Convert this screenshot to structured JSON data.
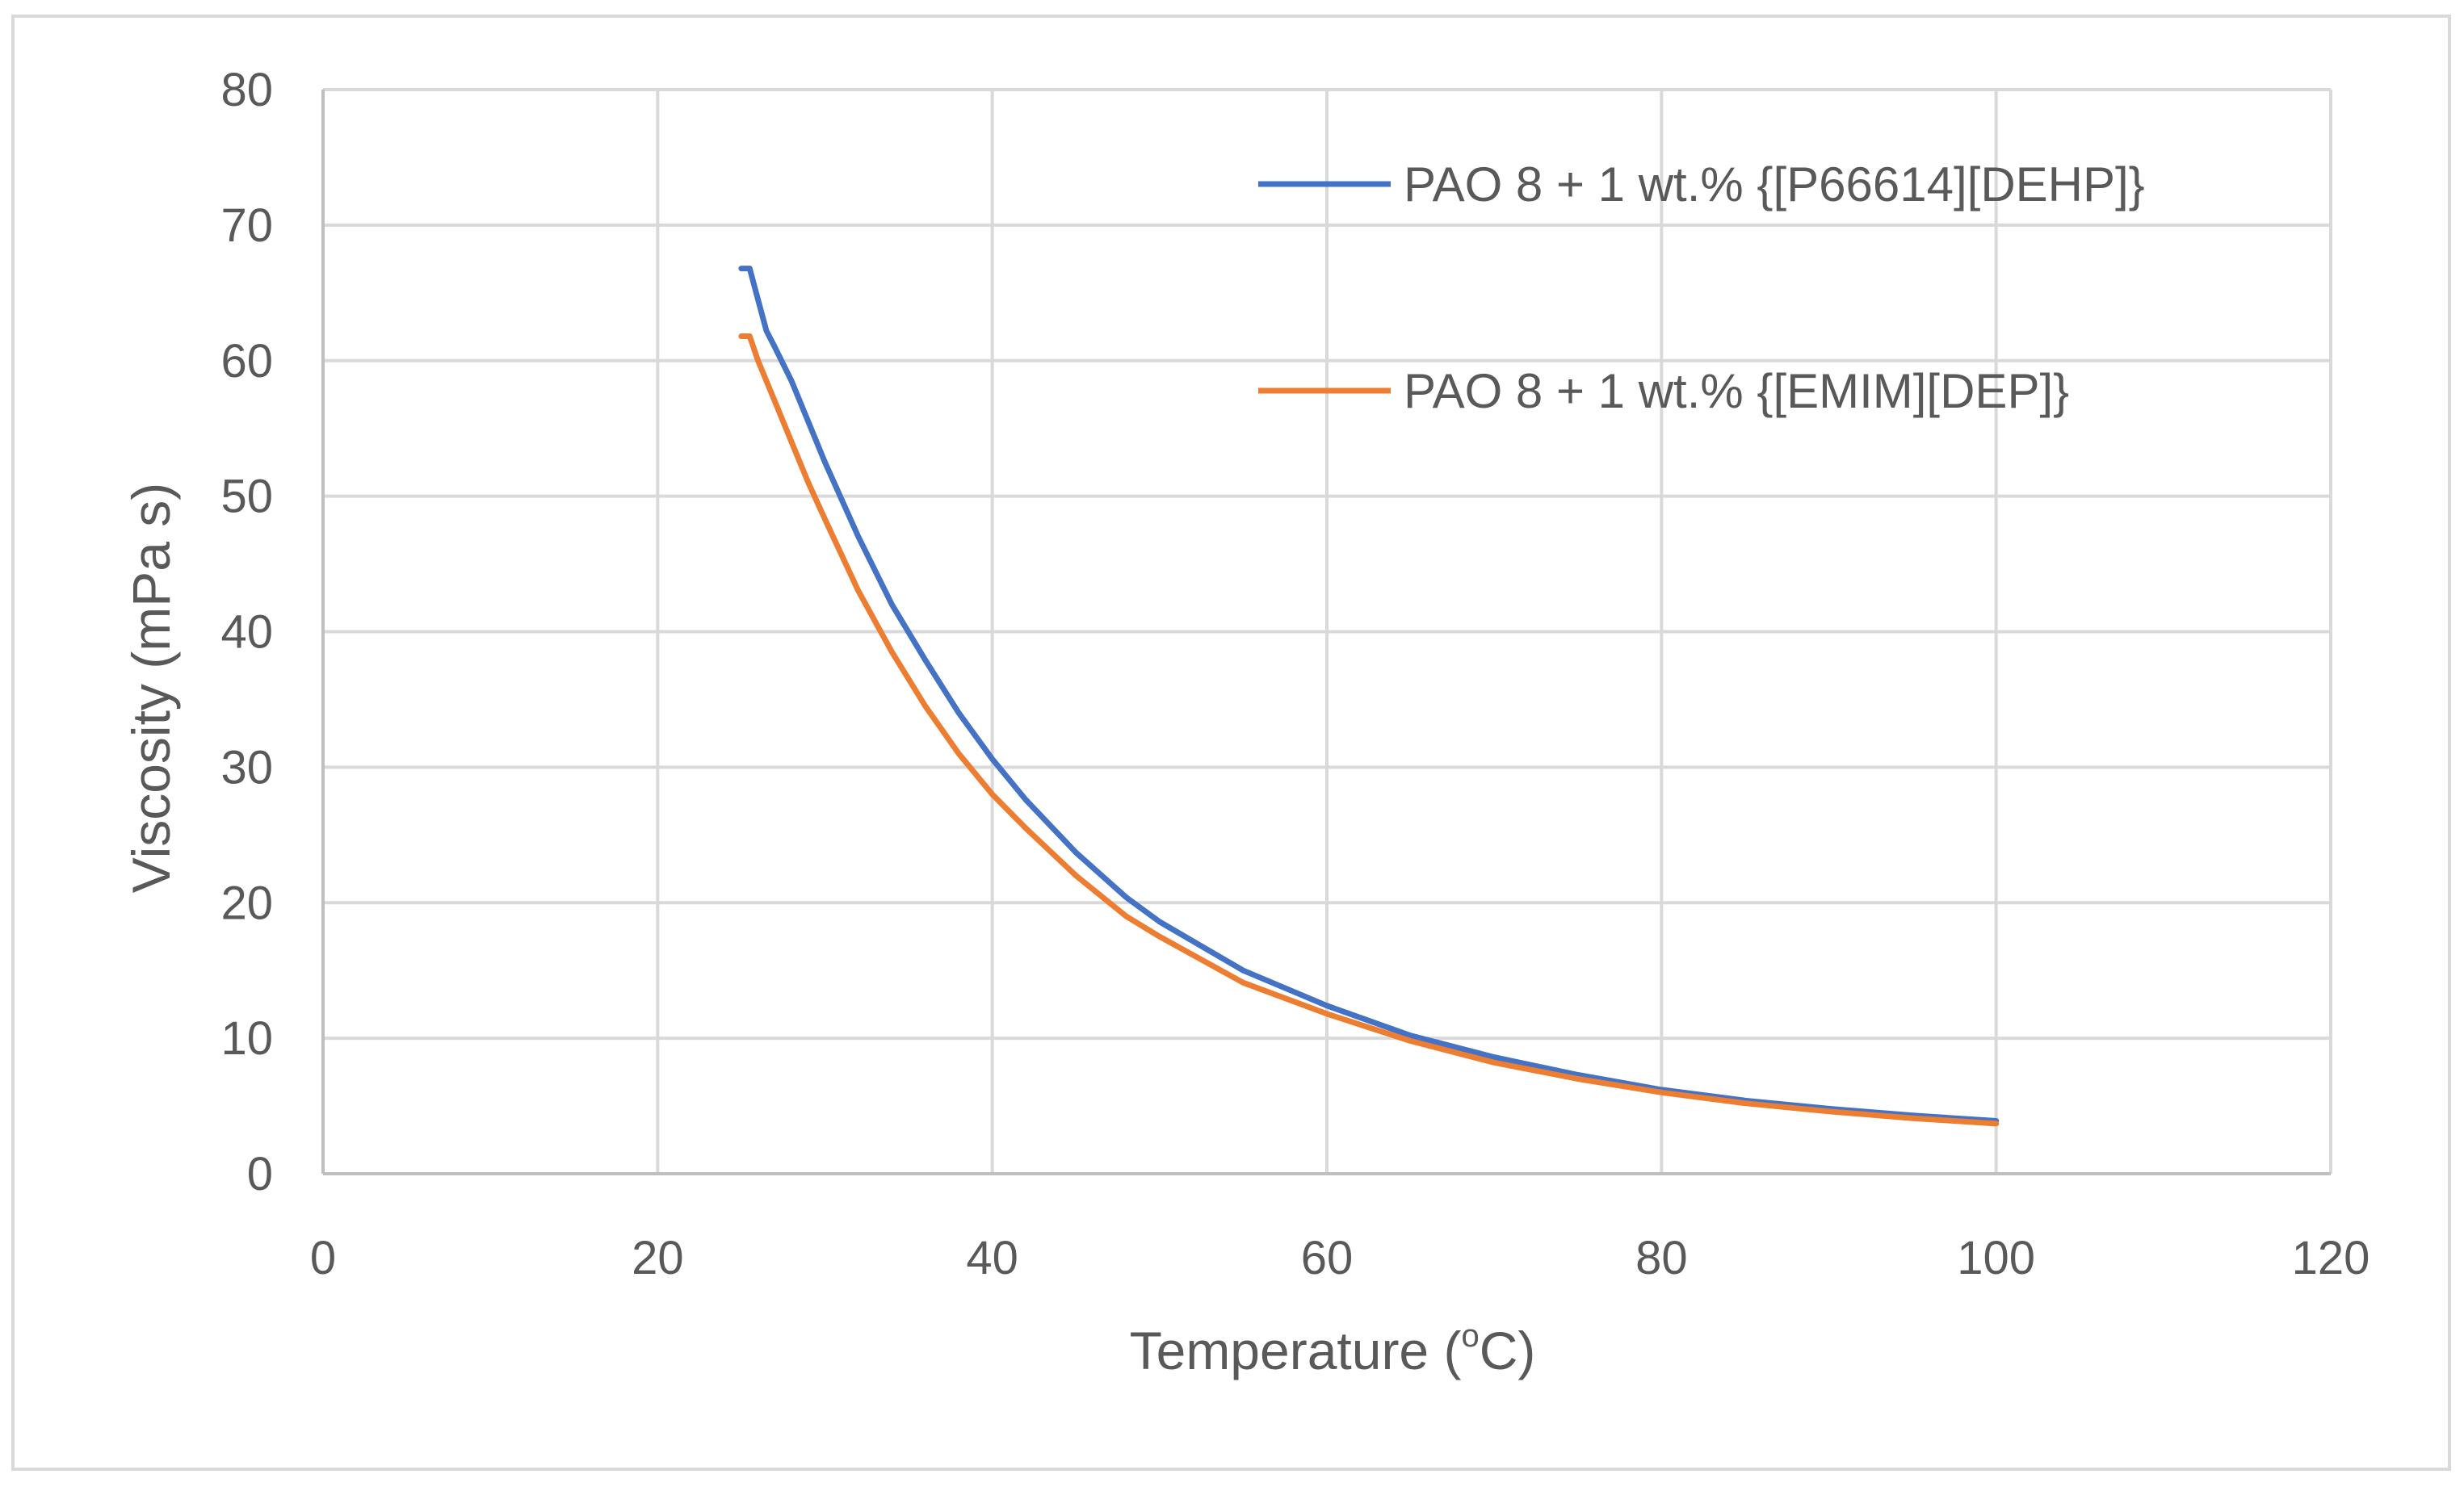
{
  "chart_data": {
    "type": "line",
    "title": "",
    "xlabel": "Temperature",
    "xlabel_unit_prefix": "(",
    "xlabel_unit_sup": "o",
    "xlabel_unit_suffix": "C)",
    "ylabel": "Viscosity (mPa s)",
    "xlim": [
      0,
      120
    ],
    "ylim": [
      0,
      80
    ],
    "xticks": [
      0,
      20,
      40,
      60,
      80,
      100,
      120
    ],
    "yticks": [
      0,
      10,
      20,
      30,
      40,
      50,
      60,
      70,
      80
    ],
    "grid": true,
    "legend_position": "top-right",
    "series": [
      {
        "name": "PAO 8 + 1 wt.% {[P66614][DEHP]}",
        "color": "#4472C4",
        "x": [
          25,
          25.5,
          26,
          26.5,
          27,
          28,
          29,
          30,
          32,
          34,
          36,
          38,
          40,
          42,
          45,
          48,
          50,
          55,
          60,
          65,
          70,
          75,
          80,
          85,
          90,
          95,
          100
        ],
        "y": [
          66.8,
          66.8,
          64.5,
          62.2,
          61,
          58.5,
          55.5,
          52.5,
          47,
          42,
          37.9,
          34,
          30.6,
          27.6,
          23.7,
          20.4,
          18.6,
          15,
          12.4,
          10.2,
          8.6,
          7.3,
          6.2,
          5.4,
          4.8,
          4.3,
          3.9
        ]
      },
      {
        "name": "PAO 8 + 1 wt.% {[EMIM][DEP]}",
        "color": "#ED7D31",
        "x": [
          25,
          25.5,
          26,
          27,
          28,
          29,
          30,
          32,
          34,
          36,
          38,
          40,
          42,
          45,
          48,
          50,
          55,
          60,
          65,
          70,
          75,
          80,
          85,
          90,
          95,
          100
        ],
        "y": [
          61.8,
          61.8,
          60,
          57,
          54,
          51,
          48.3,
          43,
          38.5,
          34.5,
          31,
          28,
          25.5,
          22,
          19,
          17.5,
          14.1,
          11.8,
          9.8,
          8.2,
          7,
          6,
          5.2,
          4.6,
          4.1,
          3.7
        ]
      }
    ]
  }
}
